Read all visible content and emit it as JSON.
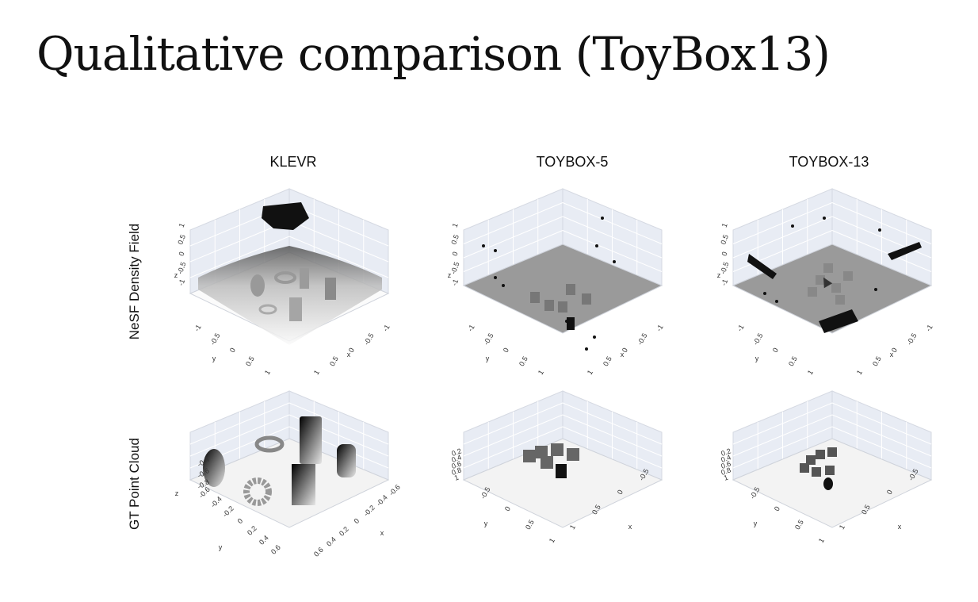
{
  "slide": {
    "title": "Qualitative comparison (ToyBox13)"
  },
  "figure": {
    "columns": [
      "KLEVR",
      "TOYBOX-5",
      "TOYBOX-13"
    ],
    "rows": [
      "NeSF Density Field",
      "GT Point Cloud"
    ],
    "ticks": {
      "density_z": [
        "1",
        "0.5",
        "0",
        "-0.5",
        "-1"
      ],
      "density_y": [
        "-1",
        "-0.5",
        "0",
        "0.5",
        "1"
      ],
      "density_x": [
        "-1",
        "-0.5",
        "0",
        "0.5",
        "1"
      ],
      "klevr_pc_z": [
        "-0.4",
        "-0.6",
        "-0.8"
      ],
      "klevr_pc_y": [
        "-0.6",
        "-0.4",
        "-0.2",
        "0",
        "0.2",
        "0.4",
        "0.6"
      ],
      "klevr_pc_x": [
        "-0.6",
        "-0.4",
        "-0.2",
        "0",
        "0.2",
        "0.4",
        "0.6"
      ],
      "toybox_pc_z": [
        "0.2",
        "0.4",
        "0.6",
        "0.8",
        "1"
      ],
      "toybox_pc_y": [
        "-0.5",
        "0",
        "0.5",
        "1"
      ],
      "toybox_pc_x": [
        "-0.5",
        "0",
        "0.5",
        "1"
      ]
    },
    "axis_letters": {
      "x": "x",
      "y": "y",
      "z": "z"
    }
  },
  "colors": {
    "pane": "#e8ecf4",
    "grid": "#ffffff",
    "floor_light": "#f3f3f3",
    "floor_gray": "#9a9a9a",
    "object_dark": "#111111"
  }
}
